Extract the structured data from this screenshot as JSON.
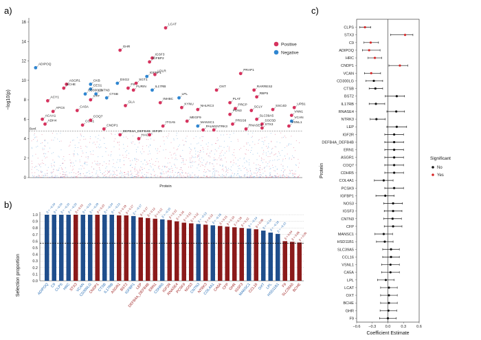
{
  "panels": {
    "a": "a)",
    "b": "b)",
    "c": "c)"
  },
  "colors": {
    "positive": "#d6335e",
    "negative": "#2f86d1",
    "bar_blue": "#1f4e8c",
    "bar_red": "#8b1a1a",
    "sig_yes": "#d62728",
    "sig_no": "#111111"
  },
  "chart_data": [
    {
      "id": "a",
      "type": "scatter",
      "title": "",
      "xlabel": "Protein",
      "ylabel": "−log10(p)",
      "ylim": [
        0,
        16
      ],
      "yticks": [
        0,
        2,
        4,
        6,
        8,
        10,
        12,
        14,
        16
      ],
      "threshold_label": "Bonf.",
      "threshold": 4.8,
      "legend": {
        "position": "top-right",
        "entries": [
          {
            "name": "Positive",
            "color": "#d6335e"
          },
          {
            "name": "Negative",
            "color": "#2f86d1"
          }
        ]
      },
      "points": [
        {
          "label": "LCAT",
          "x": 0.5,
          "y": 15.4,
          "dir": "pos"
        },
        {
          "label": "GHR",
          "x": 0.33,
          "y": 13.1,
          "dir": "pos"
        },
        {
          "label": "IGSF3",
          "x": 0.45,
          "y": 12.3,
          "dir": "pos"
        },
        {
          "label": "IGFBP2",
          "x": 0.44,
          "y": 11.9,
          "dir": "pos"
        },
        {
          "label": "ADIPOQ",
          "x": 0.015,
          "y": 11.3,
          "dir": "neg"
        },
        {
          "label": "IGFBP1",
          "x": 0.43,
          "y": 10.4,
          "dir": "neg"
        },
        {
          "label": "LDLR",
          "x": 0.46,
          "y": 10.6,
          "dir": "pos"
        },
        {
          "label": "PRAP1",
          "x": 0.78,
          "y": 10.7,
          "dir": "pos"
        },
        {
          "label": "ASGR1",
          "x": 0.13,
          "y": 9.6,
          "dir": "pos"
        },
        {
          "label": "CKB",
          "x": 0.22,
          "y": 9.6,
          "dir": "neg"
        },
        {
          "label": "DSG2",
          "x": 0.32,
          "y": 9.7,
          "dir": "neg"
        },
        {
          "label": "SGT1",
          "x": 0.39,
          "y": 9.7,
          "dir": "pos"
        },
        {
          "label": "BCHE",
          "x": 0.12,
          "y": 9.2,
          "dir": "pos"
        },
        {
          "label": "CES1",
          "x": 0.22,
          "y": 9.1,
          "dir": "neg"
        },
        {
          "label": "F9",
          "x": 0.36,
          "y": 9.2,
          "dir": "pos"
        },
        {
          "label": "FURIN",
          "x": 0.38,
          "y": 9.0,
          "dir": "pos"
        },
        {
          "label": "IL17RB",
          "x": 0.45,
          "y": 9.0,
          "dir": "neg"
        },
        {
          "label": "OXT",
          "x": 0.69,
          "y": 9.0,
          "dir": "pos"
        },
        {
          "label": "RARRES2",
          "x": 0.83,
          "y": 9.0,
          "dir": "pos"
        },
        {
          "label": "CD300LG",
          "x": 0.2,
          "y": 8.6,
          "dir": "neg"
        },
        {
          "label": "CNTN3",
          "x": 0.24,
          "y": 8.6,
          "dir": "neg"
        },
        {
          "label": "CTSB",
          "x": 0.28,
          "y": 8.2,
          "dir": "neg"
        },
        {
          "label": "CTF",
          "x": 0.22,
          "y": 8.0,
          "dir": "pos"
        },
        {
          "label": "LPL",
          "x": 0.55,
          "y": 8.2,
          "dir": "neg"
        },
        {
          "label": "RBP5",
          "x": 0.84,
          "y": 8.3,
          "dir": "pos"
        },
        {
          "label": "ACY1",
          "x": 0.06,
          "y": 7.9,
          "dir": "pos"
        },
        {
          "label": "INHBC",
          "x": 0.48,
          "y": 7.7,
          "dir": "pos"
        },
        {
          "label": "PLAT",
          "x": 0.74,
          "y": 7.7,
          "dir": "pos"
        },
        {
          "label": "UPB1",
          "x": 0.98,
          "y": 7.2,
          "dir": "pos"
        },
        {
          "label": "SSC4D",
          "x": 0.9,
          "y": 7.0,
          "dir": "pos"
        },
        {
          "label": "VNN1",
          "x": 0.97,
          "y": 6.4,
          "dir": "pos"
        },
        {
          "label": "VCAN",
          "x": 0.97,
          "y": 5.8,
          "dir": "neg"
        },
        {
          "label": "VSNL1",
          "x": 0.96,
          "y": 5.3,
          "dir": "pos"
        },
        {
          "label": "STX3",
          "x": 0.86,
          "y": 5.1,
          "dir": "pos"
        },
        {
          "label": "SSC5D",
          "x": 0.86,
          "y": 5.5,
          "dir": "pos"
        },
        {
          "label": "SLC39A5",
          "x": 0.84,
          "y": 6.0,
          "dir": "pos"
        },
        {
          "label": "NTRK3",
          "x": 0.68,
          "y": 4.9,
          "dir": "pos"
        },
        {
          "label": "CCN1",
          "x": 0.19,
          "y": 5.4,
          "dir": "pos"
        },
        {
          "label": "CNDP1",
          "x": 0.27,
          "y": 5.0,
          "dir": "pos"
        },
        {
          "label": "DEFB4A_DEFB4B",
          "x": 0.33,
          "y": 4.4,
          "dir": "pos"
        },
        {
          "label": "HAO1",
          "x": 0.4,
          "y": 4.0,
          "dir": "pos"
        },
        {
          "label": "IGF2R",
          "x": 0.44,
          "y": 4.4,
          "dir": "pos"
        },
        {
          "label": "ACAA1",
          "x": 0.04,
          "y": 6.0,
          "dir": "pos"
        },
        {
          "label": "ADH4",
          "x": 0.05,
          "y": 5.5,
          "dir": "pos"
        },
        {
          "label": "APCS",
          "x": 0.08,
          "y": 6.8,
          "dir": "pos"
        },
        {
          "label": "CA5A",
          "x": 0.17,
          "y": 6.9,
          "dir": "pos"
        },
        {
          "label": "NHLRC3",
          "x": 0.62,
          "y": 7.0,
          "dir": "pos"
        },
        {
          "label": "PRCP",
          "x": 0.76,
          "y": 7.1,
          "dir": "pos"
        },
        {
          "label": "SCLY",
          "x": 0.82,
          "y": 6.9,
          "dir": "pos"
        },
        {
          "label": "PON3",
          "x": 0.74,
          "y": 6.5,
          "dir": "pos"
        },
        {
          "label": "PRSS8",
          "x": 0.75,
          "y": 5.5,
          "dir": "pos"
        },
        {
          "label": "RNASE4",
          "x": 0.8,
          "y": 5.0,
          "dir": "pos"
        },
        {
          "label": "MANSC1",
          "x": 0.62,
          "y": 5.3,
          "dir": "neg"
        },
        {
          "label": "PALM2",
          "x": 0.64,
          "y": 4.9,
          "dir": "pos"
        },
        {
          "label": "MEGF9",
          "x": 0.58,
          "y": 5.8,
          "dir": "pos"
        },
        {
          "label": "ITGA5",
          "x": 0.49,
          "y": 5.3,
          "dir": "pos"
        },
        {
          "label": "GLA",
          "x": 0.35,
          "y": 7.4,
          "dir": "pos"
        },
        {
          "label": "KYNU",
          "x": 0.56,
          "y": 7.2,
          "dir": "pos"
        },
        {
          "label": "COQ7",
          "x": 0.22,
          "y": 5.9,
          "dir": "pos"
        }
      ],
      "labels_shown": [
        "LCAT",
        "GHR",
        "IGSF3",
        "IGFBP2",
        "ADIPOQ",
        "IGFBP1",
        "LDLR",
        "PRAP1",
        "ASGR1",
        "CKB",
        "DSG2",
        "SGT1",
        "BCHE",
        "CES1",
        "F9",
        "FURIN",
        "IL17RB",
        "OXT",
        "RARRES2",
        "CD300LG",
        "CNTN3",
        "CTSB",
        "CTF",
        "LPL",
        "RBP5",
        "ACY1",
        "INHBC",
        "PLAT",
        "UPB1",
        "SSC4D",
        "VNN1",
        "VCAN",
        "VSNL1",
        "STX3",
        "SSC5D",
        "SLC39A5",
        "NTRK3",
        "CCN1",
        "CNDP1",
        "DEFB4A_DEFB4B",
        "HAO1",
        "IGF2R",
        "ACAA1",
        "ADH4",
        "APCS",
        "CA5A",
        "NHLRC3",
        "PRCP",
        "SCLY",
        "PON3",
        "PRSS8",
        "RNASE4",
        "MANSC1",
        "PALM2",
        "MEGF9",
        "ITGA5",
        "GLA",
        "KYNU",
        "COQ7"
      ]
    },
    {
      "id": "b",
      "type": "bar",
      "xlabel": "",
      "ylabel": "Selection proportion",
      "ylim": [
        0,
        1.0
      ],
      "yticks": [
        0,
        0.1,
        0.2,
        0.3,
        0.4,
        0.5,
        0.6,
        0.7,
        0.8,
        0.9,
        1.0
      ],
      "threshold": 0.57,
      "categories": [
        "ADIPOQ",
        "C9",
        "CLPS",
        "HRC",
        "STX3",
        "VCAN",
        "CD300LG",
        "CNDP1",
        "CTSB",
        "IL17RB",
        "ASGR1",
        "BST2",
        "IGFBP1",
        "LEP",
        "DEFB4A_DEFB4B",
        "ERN1",
        "CDHR5",
        "IGF2R",
        "RNASE4",
        "PCSK9",
        "NOS3",
        "CNTN3",
        "NTRK3",
        "COL4A1",
        "CA5A",
        "CFP",
        "GHR",
        "IGSF3",
        "MANSC1",
        "CCL16",
        "OXT",
        "LPL",
        "HSD11B1",
        "F9",
        "SLC39A5",
        "BCHE"
      ],
      "values": [
        1.0,
        1.0,
        1.0,
        1.0,
        1.0,
        1.0,
        1.0,
        1.0,
        1.0,
        1.0,
        0.99,
        0.99,
        0.98,
        0.96,
        0.95,
        0.94,
        0.93,
        0.92,
        0.9,
        0.88,
        0.87,
        0.86,
        0.85,
        0.84,
        0.83,
        0.82,
        0.81,
        0.8,
        0.79,
        0.78,
        0.76,
        0.73,
        0.71,
        0.6,
        0.59,
        0.58
      ],
      "direction": [
        "neg",
        "neg",
        "neg",
        "neg",
        "pos",
        "neg",
        "neg",
        "pos",
        "neg",
        "neg",
        "pos",
        "pos",
        "neg",
        "pos",
        "pos",
        "pos",
        "neg",
        "pos",
        "pos",
        "pos",
        "pos",
        "neg",
        "pos",
        "neg",
        "pos",
        "pos",
        "pos",
        "pos",
        "neg",
        "pos",
        "neg",
        "neg",
        "neg",
        "pos",
        "pos",
        "pos"
      ],
      "beta_labels": [
        "β = −0.34",
        "β = −0.34",
        "β = −0.33",
        "β = −0.25",
        "β = 0.33",
        "β = −0.32",
        "β = −0.29",
        "β = 0.23",
        "β = −0.24",
        "β = −0.23",
        "β = 0.19",
        "β = 0.17",
        "β = −0.17",
        "β = 0.17",
        "β = 0.12",
        "β = 0.12",
        "β = −0.15",
        "β = 0.12",
        "β = 0.16",
        "β = 0.12",
        "β = 0.12",
        "β = −0.13",
        "β = 0.12",
        "β = −0.18",
        "β = 0.21",
        "β = 0.10",
        "β = 0.18",
        "β = 0.12",
        "β = −0.14",
        "β = 0.06",
        "β = −0.14",
        "β = −0.16",
        "β = −0.13",
        "β = 0.04",
        "β = 0.06",
        "β = 0.05"
      ]
    },
    {
      "id": "c",
      "type": "forest",
      "xlabel": "Coefficient Estimate",
      "ylabel": "Protein",
      "xlim": [
        -0.6,
        0.6
      ],
      "xticks": [
        -0.6,
        -0.3,
        0.0,
        0.3,
        0.6
      ],
      "xtick_labels": [
        "−0.6",
        "−0.3",
        "0.0",
        "0.3",
        "0.6"
      ],
      "legend": {
        "title": "Significant",
        "position": "right",
        "entries": [
          {
            "name": "No",
            "color": "#111111"
          },
          {
            "name": "Yes",
            "color": "#d62728"
          }
        ]
      },
      "rows": [
        {
          "protein": "CLPS",
          "est": -0.44,
          "lo": -0.54,
          "hi": -0.33,
          "sig": "Yes"
        },
        {
          "protein": "STX3",
          "est": 0.33,
          "lo": 0.05,
          "hi": 0.48,
          "sig": "Yes"
        },
        {
          "protein": "C9",
          "est": -0.33,
          "lo": -0.46,
          "hi": -0.18,
          "sig": "Yes"
        },
        {
          "protein": "ADIPOQ",
          "est": -0.36,
          "lo": -0.49,
          "hi": -0.15,
          "sig": "Yes"
        },
        {
          "protein": "HRC",
          "est": -0.25,
          "lo": -0.38,
          "hi": -0.12,
          "sig": "Yes"
        },
        {
          "protein": "CNDP1",
          "est": 0.23,
          "lo": 0.02,
          "hi": 0.38,
          "sig": "Yes"
        },
        {
          "protein": "VCAN",
          "est": -0.32,
          "lo": -0.45,
          "hi": -0.14,
          "sig": "Yes"
        },
        {
          "protein": "CD300LG",
          "est": -0.27,
          "lo": -0.42,
          "hi": -0.1,
          "sig": "No"
        },
        {
          "protein": "CTSB",
          "est": -0.24,
          "lo": -0.36,
          "hi": -0.1,
          "sig": "No"
        },
        {
          "protein": "BST2",
          "est": 0.17,
          "lo": -0.05,
          "hi": 0.32,
          "sig": "No"
        },
        {
          "protein": "IL17RB",
          "est": -0.23,
          "lo": -0.36,
          "hi": -0.06,
          "sig": "No"
        },
        {
          "protein": "RNASE4",
          "est": 0.16,
          "lo": -0.02,
          "hi": 0.32,
          "sig": "No"
        },
        {
          "protein": "NTRK3",
          "est": -0.22,
          "lo": -0.34,
          "hi": -0.05,
          "sig": "No"
        },
        {
          "protein": "LEP",
          "est": 0.17,
          "lo": -0.02,
          "hi": 0.36,
          "sig": "No"
        },
        {
          "protein": "IGF2R",
          "est": 0.12,
          "lo": -0.06,
          "hi": 0.3,
          "sig": "No"
        },
        {
          "protein": "DEFB4A_DEFB4B",
          "est": 0.12,
          "lo": -0.06,
          "hi": 0.3,
          "sig": "No"
        },
        {
          "protein": "ERN1",
          "est": 0.12,
          "lo": -0.06,
          "hi": 0.3,
          "sig": "No"
        },
        {
          "protein": "ASGR1",
          "est": 0.12,
          "lo": -0.06,
          "hi": 0.3,
          "sig": "No"
        },
        {
          "protein": "COQ7",
          "est": 0.12,
          "lo": -0.06,
          "hi": 0.3,
          "sig": "No"
        },
        {
          "protein": "CDHR5",
          "est": 0.12,
          "lo": -0.06,
          "hi": 0.3,
          "sig": "No"
        },
        {
          "protein": "COL4A1",
          "est": -0.08,
          "lo": -0.26,
          "hi": 0.1,
          "sig": "No"
        },
        {
          "protein": "PCSK9",
          "est": 0.12,
          "lo": -0.06,
          "hi": 0.3,
          "sig": "No"
        },
        {
          "protein": "IGFBP1",
          "est": -0.05,
          "lo": -0.23,
          "hi": 0.12,
          "sig": "No"
        },
        {
          "protein": "NOS3",
          "est": 0.1,
          "lo": -0.08,
          "hi": 0.28,
          "sig": "No"
        },
        {
          "protein": "IGSF3",
          "est": 0.1,
          "lo": -0.07,
          "hi": 0.27,
          "sig": "No"
        },
        {
          "protein": "CNTN3",
          "est": 0.09,
          "lo": -0.08,
          "hi": 0.26,
          "sig": "No"
        },
        {
          "protein": "CFP",
          "est": 0.1,
          "lo": -0.07,
          "hi": 0.27,
          "sig": "No"
        },
        {
          "protein": "MANSC1",
          "est": -0.08,
          "lo": -0.25,
          "hi": 0.09,
          "sig": "No"
        },
        {
          "protein": "HSD11B1",
          "est": -0.06,
          "lo": -0.22,
          "hi": 0.1,
          "sig": "No"
        },
        {
          "protein": "SLC39A5",
          "est": 0.06,
          "lo": -0.1,
          "hi": 0.22,
          "sig": "No"
        },
        {
          "protein": "CCL16",
          "est": 0.06,
          "lo": -0.1,
          "hi": 0.22,
          "sig": "No"
        },
        {
          "protein": "VSNL1",
          "est": 0.05,
          "lo": -0.12,
          "hi": 0.22,
          "sig": "No"
        },
        {
          "protein": "CA5A",
          "est": 0.05,
          "lo": -0.12,
          "hi": 0.22,
          "sig": "No"
        },
        {
          "protein": "LPL",
          "est": -0.04,
          "lo": -0.2,
          "hi": 0.12,
          "sig": "No"
        },
        {
          "protein": "LCAT",
          "est": 0.02,
          "lo": -0.14,
          "hi": 0.18,
          "sig": "No"
        },
        {
          "protein": "OXT",
          "est": 0.02,
          "lo": -0.14,
          "hi": 0.18,
          "sig": "No"
        },
        {
          "protein": "BCHE",
          "est": 0.02,
          "lo": -0.14,
          "hi": 0.18,
          "sig": "No"
        },
        {
          "protein": "GHR",
          "est": 0.01,
          "lo": -0.15,
          "hi": 0.17,
          "sig": "No"
        },
        {
          "protein": "F9",
          "est": 0.0,
          "lo": -0.16,
          "hi": 0.16,
          "sig": "No"
        }
      ]
    }
  ]
}
